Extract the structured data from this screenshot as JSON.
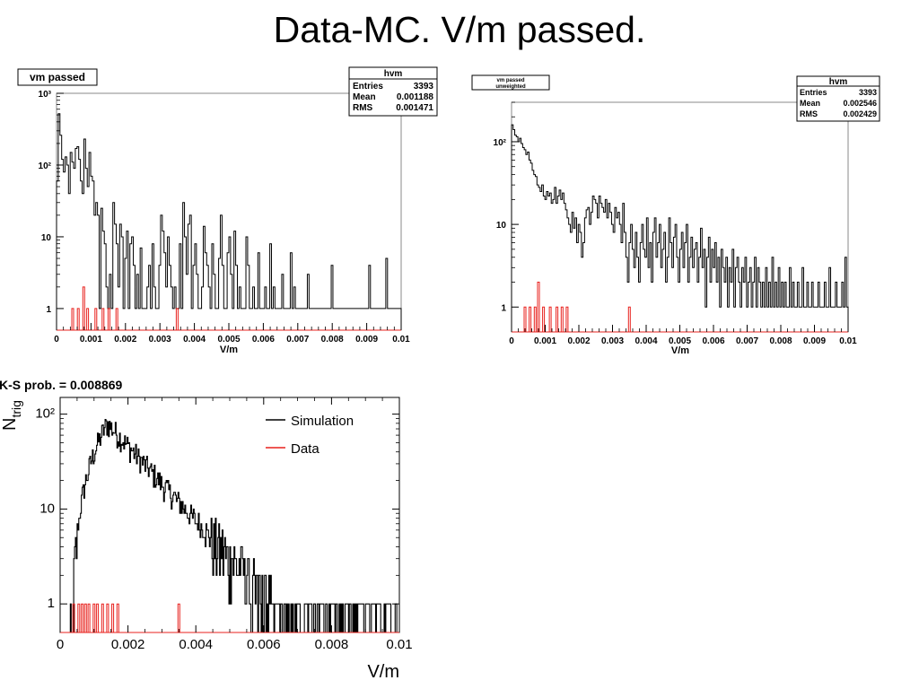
{
  "slide": {
    "title": "Data-MC. V/m passed."
  },
  "chart_data": [
    {
      "type": "histogram",
      "title": "vm passed",
      "xlabel": "V/m",
      "ylabel": "",
      "log_y": true,
      "xlim": [
        0,
        0.01
      ],
      "ylim": [
        0.5,
        1000
      ],
      "x_ticks": [
        "0",
        "0.001",
        "0.002",
        "0.003",
        "0.004",
        "0.005",
        "0.006",
        "0.007",
        "0.008",
        "0.009",
        "0.01"
      ],
      "y_ticks": [
        "1",
        "10",
        "10²",
        "10³"
      ],
      "stats": {
        "name": "hvm",
        "entries": "3393",
        "mean": "0.001188",
        "rms": "0.001471"
      },
      "stats_labels": {
        "entries": "Entries",
        "mean": "Mean",
        "rms": "RMS"
      },
      "series_black": [
        60,
        520,
        260,
        120,
        80,
        130,
        100,
        40,
        150,
        110,
        90,
        170,
        180,
        120,
        60,
        40,
        230,
        90,
        50,
        150,
        70,
        60,
        20,
        30,
        20,
        1,
        25,
        12,
        8,
        2,
        1,
        3,
        1,
        30,
        15,
        8,
        2,
        15,
        10,
        1,
        5,
        12,
        1,
        8,
        10,
        4,
        1,
        3,
        1,
        7,
        1,
        1,
        1,
        2,
        4,
        1,
        8,
        2,
        1,
        1,
        4,
        20,
        12,
        6,
        2,
        10,
        4,
        2,
        1,
        2,
        1,
        1,
        8,
        1,
        30,
        10,
        3,
        15,
        20,
        1,
        4,
        8,
        3,
        1,
        1,
        2,
        14,
        6,
        4,
        2,
        1,
        8,
        3,
        1,
        1,
        5,
        20,
        4,
        1,
        1,
        6,
        10,
        3,
        1,
        12,
        4,
        1,
        2,
        1,
        1,
        1,
        10,
        4,
        1,
        1,
        2,
        1,
        1,
        6,
        1,
        1,
        1,
        2,
        1,
        1,
        8,
        1,
        2,
        1,
        1,
        1,
        1,
        3,
        1,
        1,
        1,
        1,
        6,
        1,
        2,
        1,
        1,
        1,
        1,
        1,
        1,
        1,
        3,
        1,
        1,
        1,
        1,
        1,
        1,
        1,
        1,
        1,
        1,
        1,
        1,
        1,
        4,
        1,
        1,
        1,
        1,
        1,
        1,
        1,
        1,
        1,
        1,
        1,
        1,
        1,
        1,
        1,
        1,
        1,
        1,
        1,
        1,
        1,
        4,
        1,
        1,
        1,
        1,
        1,
        1,
        1,
        1,
        1,
        5,
        1,
        1,
        1,
        1,
        1,
        1,
        1,
        1
      ],
      "series_red": [
        {
          "x": 0.00047,
          "y": 1
        },
        {
          "x": 0.00063,
          "y": 1
        },
        {
          "x": 0.00079,
          "y": 2
        },
        {
          "x": 0.0009,
          "y": 1
        },
        {
          "x": 0.00114,
          "y": 1
        },
        {
          "x": 0.00135,
          "y": 1
        },
        {
          "x": 0.00152,
          "y": 1
        },
        {
          "x": 0.00175,
          "y": 1
        },
        {
          "x": 0.0035,
          "y": 1
        }
      ]
    },
    {
      "type": "histogram",
      "title": "vm passed unweighted",
      "title_lines": [
        "vm passed",
        "unweighted"
      ],
      "xlabel": "V/m",
      "ylabel": "",
      "log_y": true,
      "xlim": [
        0,
        0.01
      ],
      "ylim": [
        0.5,
        300
      ],
      "x_ticks": [
        "0",
        "0.001",
        "0.002",
        "0.003",
        "0.004",
        "0.005",
        "0.006",
        "0.007",
        "0.008",
        "0.009",
        "0.01"
      ],
      "y_ticks": [
        "1",
        "10",
        "10²"
      ],
      "stats": {
        "name": "hvm",
        "entries": "3393",
        "mean": "0.002546",
        "rms": "0.002429"
      },
      "stats_labels": {
        "entries": "Entries",
        "mean": "Mean",
        "rms": "RMS"
      },
      "series_black": [
        160,
        140,
        120,
        115,
        100,
        110,
        95,
        85,
        80,
        70,
        75,
        60,
        55,
        45,
        40,
        38,
        30,
        28,
        25,
        30,
        22,
        20,
        25,
        22,
        24,
        18,
        20,
        28,
        18,
        22,
        26,
        20,
        24,
        18,
        15,
        12,
        10,
        8,
        14,
        9,
        12,
        6,
        10,
        8,
        4,
        6,
        12,
        15,
        16,
        10,
        14,
        22,
        20,
        18,
        12,
        22,
        18,
        16,
        14,
        20,
        12,
        18,
        14,
        10,
        8,
        16,
        12,
        14,
        10,
        6,
        18,
        8,
        4,
        2,
        6,
        10,
        5,
        3,
        8,
        4,
        2,
        6,
        10,
        5,
        4,
        12,
        3,
        6,
        2,
        8,
        12,
        4,
        6,
        10,
        3,
        5,
        8,
        2,
        4,
        12,
        6,
        3,
        7,
        10,
        4,
        2,
        5,
        8,
        3,
        6,
        10,
        2,
        4,
        7,
        3,
        5,
        6,
        2,
        4,
        9,
        3,
        5,
        1,
        4,
        7,
        2,
        5,
        3,
        6,
        2,
        4,
        1,
        5,
        3,
        2,
        4,
        1,
        3,
        2,
        5,
        1,
        3,
        4,
        2,
        1,
        3,
        2,
        4,
        1,
        2,
        3,
        1,
        2,
        4,
        1,
        3,
        2,
        1,
        2,
        1,
        3,
        1,
        2,
        1,
        4,
        1,
        2,
        1,
        3,
        1,
        2,
        1,
        2,
        1,
        1,
        3,
        1,
        2,
        1,
        1,
        2,
        1,
        1,
        3,
        1,
        1,
        2,
        1,
        1,
        2,
        1,
        1,
        1,
        2,
        1,
        1,
        1,
        2,
        1,
        1,
        3,
        1,
        1,
        1,
        2,
        1,
        1,
        1,
        2,
        1,
        4,
        1
      ],
      "series_red": [
        {
          "x": 0.0004,
          "y": 1
        },
        {
          "x": 0.00055,
          "y": 1
        },
        {
          "x": 0.0007,
          "y": 1
        },
        {
          "x": 0.0008,
          "y": 2
        },
        {
          "x": 0.00095,
          "y": 1
        },
        {
          "x": 0.00115,
          "y": 1
        },
        {
          "x": 0.00135,
          "y": 1
        },
        {
          "x": 0.0015,
          "y": 1
        },
        {
          "x": 0.00165,
          "y": 1
        },
        {
          "x": 0.0035,
          "y": 1
        }
      ]
    },
    {
      "type": "histogram",
      "title": "K-S prob. = 0.008869",
      "xlabel": "V/m",
      "ylabel": "N",
      "ylabel_sub": "trig",
      "log_y": true,
      "xlim": [
        0,
        0.01
      ],
      "ylim": [
        0.5,
        150
      ],
      "x_ticks": [
        "0",
        "0.002",
        "0.004",
        "0.006",
        "0.008",
        "0.01"
      ],
      "y_ticks": [
        "1",
        "10",
        "10²"
      ],
      "legend_position": "top-right",
      "series": [
        {
          "name": "Simulation",
          "color": "#000000"
        },
        {
          "name": "Data",
          "color": "#e8201c"
        }
      ],
      "sim_peak": {
        "x": 0.0014,
        "y": 80
      },
      "sim_onset": 0.0003,
      "data_x": [
        0.0004,
        0.00055,
        0.00065,
        0.00075,
        0.00085,
        0.001,
        0.0011,
        0.00125,
        0.0014,
        0.00155,
        0.0017,
        0.0035
      ]
    }
  ]
}
